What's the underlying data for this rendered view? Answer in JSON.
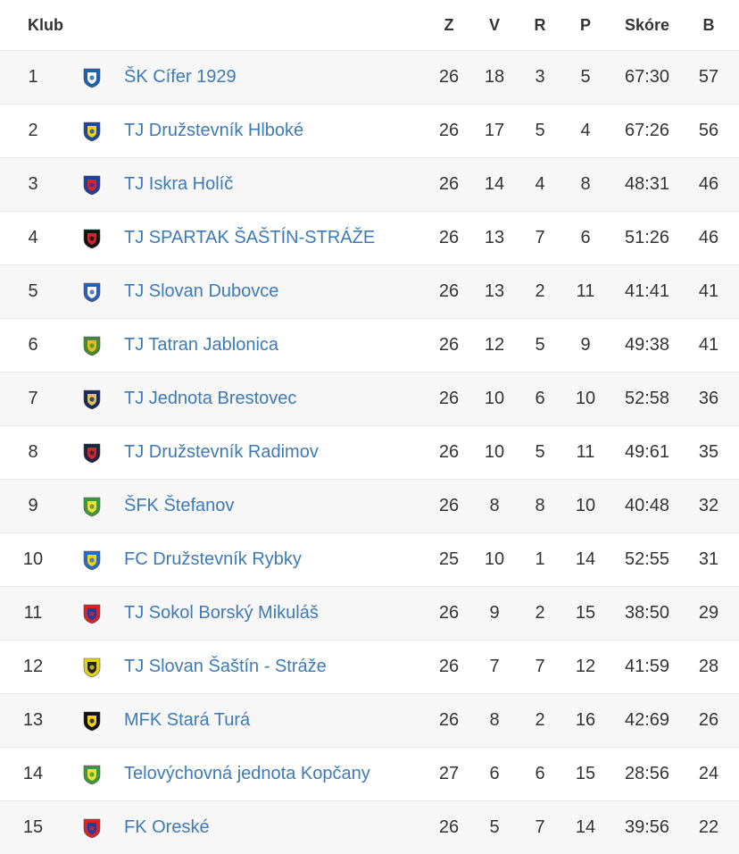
{
  "header": {
    "club": "Klub",
    "z": "Z",
    "v": "V",
    "r": "R",
    "p": "P",
    "score": "Skóre",
    "b": "B"
  },
  "rows": [
    {
      "rank": "1",
      "name": "ŠK Cífer 1929",
      "z": "26",
      "v": "18",
      "r": "3",
      "p": "5",
      "score": "67:30",
      "b": "57",
      "crest_icon": "cifer-crest-icon",
      "colors": [
        "#1f5fb0",
        "#ffffff"
      ]
    },
    {
      "rank": "2",
      "name": "TJ Družstevník Hlboké",
      "z": "26",
      "v": "17",
      "r": "5",
      "p": "4",
      "score": "67:26",
      "b": "56",
      "crest_icon": "hlboke-crest-icon",
      "colors": [
        "#1c4a9a",
        "#f2d21b"
      ]
    },
    {
      "rank": "3",
      "name": "TJ Iskra Holíč",
      "z": "26",
      "v": "14",
      "r": "4",
      "p": "8",
      "score": "48:31",
      "b": "46",
      "crest_icon": "holic-crest-icon",
      "colors": [
        "#1f3f9a",
        "#d8232a"
      ]
    },
    {
      "rank": "4",
      "name": "TJ SPARTAK ŠAŠTÍN-STRÁŽE",
      "z": "26",
      "v": "13",
      "r": "7",
      "p": "6",
      "score": "51:26",
      "b": "46",
      "crest_icon": "spartak-crest-icon",
      "colors": [
        "#111111",
        "#d8232a"
      ]
    },
    {
      "rank": "5",
      "name": "TJ Slovan Dubovce",
      "z": "26",
      "v": "13",
      "r": "2",
      "p": "11",
      "score": "41:41",
      "b": "41",
      "crest_icon": "dubovce-crest-icon",
      "colors": [
        "#2a5fb8",
        "#ffffff"
      ]
    },
    {
      "rank": "6",
      "name": "TJ Tatran Jablonica",
      "z": "26",
      "v": "12",
      "r": "5",
      "p": "9",
      "score": "49:38",
      "b": "41",
      "crest_icon": "jablonica-crest-icon",
      "colors": [
        "#4a8a2a",
        "#e0c020"
      ]
    },
    {
      "rank": "7",
      "name": "TJ Jednota Brestovec",
      "z": "26",
      "v": "10",
      "r": "6",
      "p": "10",
      "score": "52:58",
      "b": "36",
      "crest_icon": "brestovec-crest-icon",
      "colors": [
        "#1a2a5a",
        "#e0c060"
      ]
    },
    {
      "rank": "8",
      "name": "TJ Družstevník Radimov",
      "z": "26",
      "v": "10",
      "r": "5",
      "p": "11",
      "score": "49:61",
      "b": "35",
      "crest_icon": "radimov-crest-icon",
      "colors": [
        "#222244",
        "#d8232a"
      ]
    },
    {
      "rank": "9",
      "name": "ŠFK Štefanov",
      "z": "26",
      "v": "8",
      "r": "8",
      "p": "10",
      "score": "40:48",
      "b": "32",
      "crest_icon": "stefanov-crest-icon",
      "colors": [
        "#3a9a3a",
        "#f2e030"
      ]
    },
    {
      "rank": "10",
      "name": "FC Družstevník Rybky",
      "z": "25",
      "v": "10",
      "r": "1",
      "p": "14",
      "score": "52:55",
      "b": "31",
      "crest_icon": "rybky-crest-icon",
      "colors": [
        "#2a6ac0",
        "#f2d21b"
      ]
    },
    {
      "rank": "11",
      "name": "TJ Sokol Borský Mikuláš",
      "z": "26",
      "v": "9",
      "r": "2",
      "p": "15",
      "score": "38:50",
      "b": "29",
      "crest_icon": "mikulas-crest-icon",
      "colors": [
        "#d8232a",
        "#1f3f9a"
      ]
    },
    {
      "rank": "12",
      "name": "TJ Slovan Šaštín - Stráže",
      "z": "26",
      "v": "7",
      "r": "7",
      "p": "12",
      "score": "41:59",
      "b": "28",
      "crest_icon": "slovan-sastin-crest-icon",
      "colors": [
        "#e0d020",
        "#222222"
      ]
    },
    {
      "rank": "13",
      "name": "MFK Stará Turá",
      "z": "26",
      "v": "8",
      "r": "2",
      "p": "16",
      "score": "42:69",
      "b": "26",
      "crest_icon": "stara-tura-crest-icon",
      "colors": [
        "#111111",
        "#f2d21b"
      ]
    },
    {
      "rank": "14",
      "name": "Telovýchovná jednota Kopčany",
      "z": "27",
      "v": "6",
      "r": "6",
      "p": "15",
      "score": "28:56",
      "b": "24",
      "crest_icon": "kopcany-crest-icon",
      "colors": [
        "#3a9a3a",
        "#f2e030"
      ]
    },
    {
      "rank": "15",
      "name": "FK Oreské",
      "z": "26",
      "v": "5",
      "r": "7",
      "p": "14",
      "score": "39:56",
      "b": "22",
      "crest_icon": "oreske-crest-icon",
      "colors": [
        "#d8232a",
        "#1f3f9a"
      ]
    }
  ]
}
